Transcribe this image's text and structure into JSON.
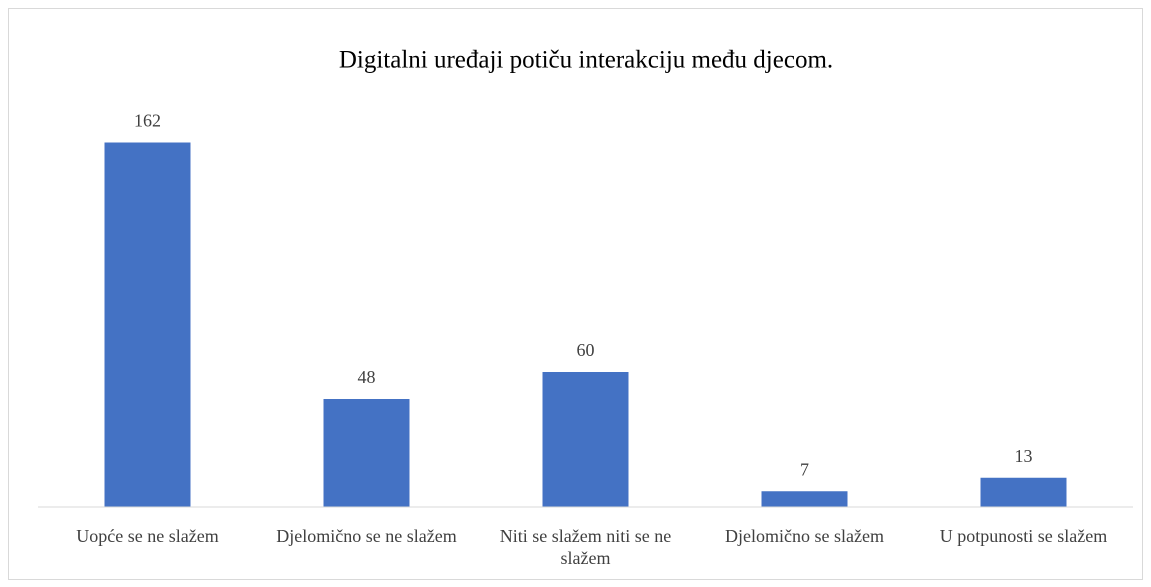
{
  "chart_data": {
    "type": "bar",
    "title": "Digitalni uređaji potiču interakciju među djecom.",
    "categories": [
      "Uopće se ne slažem",
      "Djelomično se ne slažem",
      "Niti se slažem niti se ne slažem",
      "Djelomično se slažem",
      "U potpunosti se slažem"
    ],
    "values": [
      162,
      48,
      60,
      7,
      13
    ],
    "color": "#4472c4",
    "ylim": [
      0,
      180
    ]
  }
}
